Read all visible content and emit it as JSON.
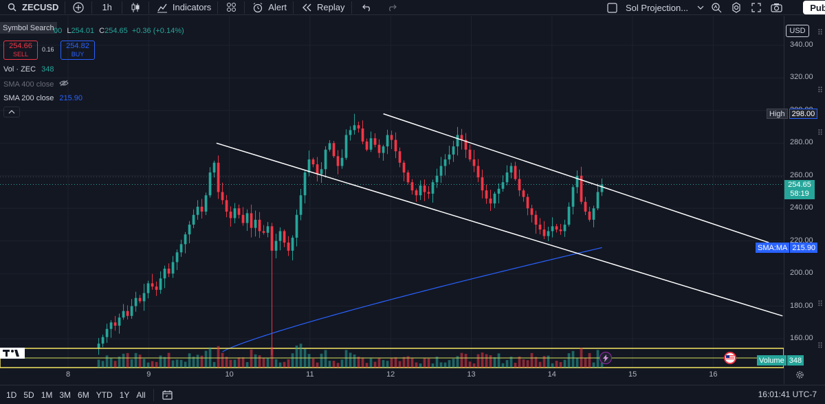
{
  "toolbar": {
    "symbol": "ZECUSD",
    "interval": "1h",
    "indicators_label": "Indicators",
    "alert_label": "Alert",
    "replay_label": "Replay",
    "layout_name": "Sol Projection...",
    "publish_label": "Publi"
  },
  "legend": {
    "symbol_search_tooltip": "Symbol Search",
    "ohlc": {
      "o_tail": "00",
      "l_key": "L",
      "l_val": "254.01",
      "c_key": "C",
      "c_val": "254.65",
      "change": "+0.36 (+0.14%)"
    },
    "sell_price": "254.66",
    "sell_label": "SELL",
    "spread": "0.16",
    "buy_price": "254.82",
    "buy_label": "BUY",
    "vol_label": "Vol · ZEC",
    "vol_value": "348",
    "sma400_label": "SMA 400 close",
    "sma200_label": "SMA 200 close",
    "sma200_value": "215.90"
  },
  "price_axis": {
    "currency": "USD",
    "ticks": [
      "340.00",
      "320.00",
      "300.00",
      "280.00",
      "260.00",
      "240.00",
      "220.00",
      "200.00",
      "180.00",
      "160.00"
    ],
    "high_key": "High",
    "high_value": "298.00",
    "last_price": "254.65",
    "countdown": "58:19",
    "sma_key": "SMA:MA",
    "sma_value": "215.90",
    "volume_key": "Volume",
    "volume_value": "348"
  },
  "time_axis": {
    "ticks": [
      "8",
      "9",
      "10",
      "11",
      "12",
      "13",
      "14",
      "15",
      "16"
    ]
  },
  "bottom_bar": {
    "ranges": [
      "1D",
      "5D",
      "1M",
      "3M",
      "6M",
      "YTD",
      "1Y",
      "All"
    ],
    "clock": "16:01:41 UTC-7"
  },
  "colors": {
    "up": "#26a69a",
    "down": "#f23645",
    "sma": "#2962ff",
    "background": "#131722",
    "trendline": "#ffffff",
    "volume_band": "#f5e663"
  },
  "chart_data": {
    "type": "candlestick",
    "interval": "1h",
    "ylim": [
      150,
      345
    ],
    "x_day_ticks": [
      8,
      9,
      10,
      11,
      12,
      13,
      14,
      15,
      16
    ],
    "high": 298.0,
    "last": 254.65,
    "sma200_last": 215.9,
    "trendlines": [
      {
        "from": [
          9.84,
          280
        ],
        "to": [
          16.86,
          174
        ]
      },
      {
        "from": [
          11.91,
          298
        ],
        "to": [
          16.69,
          219
        ]
      }
    ],
    "closes": [
      157,
      161,
      166,
      170,
      168,
      173,
      177,
      174,
      180,
      185,
      183,
      188,
      194,
      192,
      190,
      197,
      203,
      200,
      207,
      213,
      218,
      224,
      230,
      236,
      241,
      238,
      248,
      262,
      268,
      250,
      245,
      238,
      234,
      240,
      236,
      231,
      237,
      228,
      233,
      226,
      225,
      229,
      214,
      220,
      226,
      219,
      214,
      222,
      236,
      248,
      262,
      270,
      267,
      261,
      264,
      276,
      280,
      272,
      266,
      271,
      285,
      288,
      291,
      289,
      281,
      276,
      283,
      279,
      274,
      278,
      285,
      282,
      275,
      268,
      262,
      256,
      251,
      248,
      254,
      250,
      249,
      256,
      260,
      266,
      270,
      273,
      278,
      285,
      282,
      276,
      270,
      266,
      259,
      251,
      246,
      243,
      249,
      252,
      256,
      262,
      266,
      258,
      251,
      247,
      240,
      236,
      230,
      227,
      223,
      226,
      229,
      227,
      226,
      230,
      241,
      253,
      260,
      244,
      238,
      233,
      240,
      250,
      254.65
    ]
  }
}
